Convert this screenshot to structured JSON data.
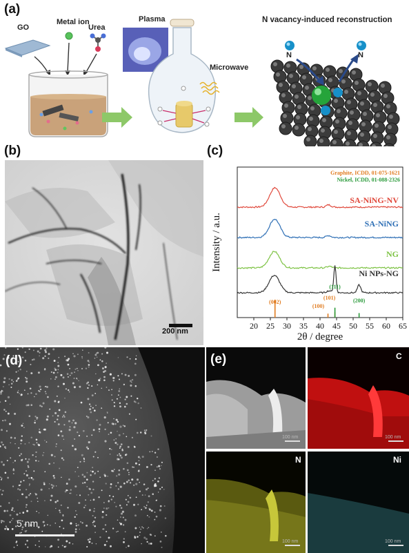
{
  "panel_a": {
    "letter": "(a)",
    "go_label": "GO",
    "metal_ion_label": "Metal ion",
    "urea_label": "Urea",
    "plasma_label": "Plasma",
    "microwave_label": "Microwave",
    "reconstruction_title": "N vacancy-induced reconstruction",
    "n_label_left": "N",
    "n_label_right": "N"
  },
  "panel_b": {
    "letter": "(b)",
    "scalebar_label": "200 nm"
  },
  "panel_c": {
    "letter": "(c)",
    "ref_graphite": "Graphite, ICDD, 01-075-1621",
    "ref_nickel": "Nickel, ICDD, 01-088-2326",
    "colors": {
      "SA-NiNG-NV": "#e0483b",
      "SA-NiNG": "#2e6fb5",
      "NG": "#7cc242",
      "Ni NPs-NG": "#333333",
      "graphite_ref": "#e07b1f",
      "nickel_ref": "#2a9a3a"
    },
    "chart_data": {
      "type": "line",
      "xlabel": "2θ / degree",
      "ylabel": "Intensity / a.u.",
      "xlim": [
        15,
        65
      ],
      "xticks": [
        20,
        25,
        30,
        35,
        40,
        45,
        50,
        55,
        60,
        65
      ],
      "grid": false,
      "series": [
        {
          "name": "SA-NiNG-NV",
          "peaks": [
            {
              "x": 26.4,
              "h": 1.0
            },
            {
              "x": 42.6,
              "h": 0.12
            }
          ]
        },
        {
          "name": "SA-NiNG",
          "peaks": [
            {
              "x": 26.3,
              "h": 0.95
            },
            {
              "x": 42.6,
              "h": 0.1
            }
          ]
        },
        {
          "name": "NG",
          "peaks": [
            {
              "x": 26.2,
              "h": 0.85
            },
            {
              "x": 42.8,
              "h": 0.08
            }
          ]
        },
        {
          "name": "Ni NPs-NG",
          "peaks": [
            {
              "x": 26.2,
              "h": 0.9
            },
            {
              "x": 42.7,
              "h": 0.1
            },
            {
              "x": 44.5,
              "h": 1.4
            },
            {
              "x": 51.8,
              "h": 0.4
            }
          ]
        }
      ],
      "reference_lines": [
        {
          "name": "(002)",
          "x": 26.4,
          "height": 1.0,
          "source": "graphite"
        },
        {
          "name": "(100)",
          "x": 42.4,
          "height": 0.22,
          "source": "graphite"
        },
        {
          "name": "(101)",
          "x": 44.5,
          "height": 0.3,
          "source": "graphite"
        },
        {
          "name": "(111)",
          "x": 44.5,
          "height": 0.55,
          "source": "nickel"
        },
        {
          "name": "(200)",
          "x": 51.8,
          "height": 0.25,
          "source": "nickel"
        }
      ]
    }
  },
  "panel_d": {
    "letter": "(d)",
    "scalebar_label": "5 nm"
  },
  "panel_e": {
    "letter": "(e)",
    "map_c_label": "C",
    "map_n_label": "N",
    "map_ni_label": "Ni",
    "scale_label": "100 nm"
  }
}
